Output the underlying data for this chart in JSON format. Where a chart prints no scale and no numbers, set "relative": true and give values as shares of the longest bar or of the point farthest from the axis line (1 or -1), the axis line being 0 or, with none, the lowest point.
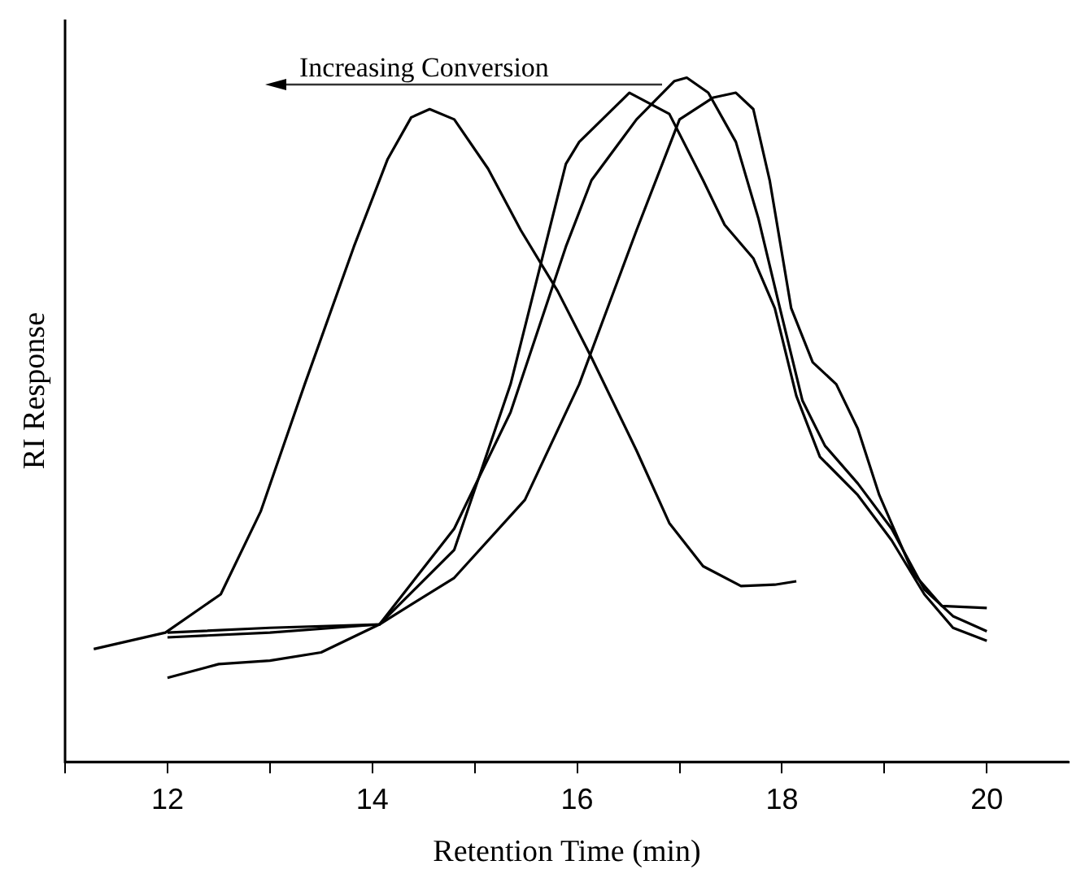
{
  "chart_data": {
    "type": "line",
    "xlabel": "Retention Time (min)",
    "ylabel": "RI Response",
    "relative": true,
    "tick_labels": "x",
    "legend": false,
    "grid": false,
    "marker": "none",
    "line_style": "solid",
    "xlim": [
      11,
      20.8
    ],
    "xticks": [
      {
        "value": 11,
        "label": null
      },
      12,
      {
        "value": 13,
        "label": null
      },
      14,
      {
        "value": 15,
        "label": null
      },
      16,
      {
        "value": 17,
        "label": null
      },
      18,
      {
        "value": 19,
        "label": null
      },
      20
    ],
    "annotations": [
      "Increasing Conversion"
    ],
    "series": [
      {
        "color": "#000000",
        "x": [
          11.28,
          11.98,
          12.52,
          12.91,
          13.34,
          13.82,
          14.15,
          14.38,
          14.56,
          14.8,
          15.13,
          15.45,
          15.81,
          16.14,
          16.58,
          16.9,
          17.23,
          17.6,
          17.93,
          18.14
        ],
        "values": [
          0.165,
          0.189,
          0.245,
          0.366,
          0.552,
          0.753,
          0.881,
          0.942,
          0.954,
          0.939,
          0.867,
          0.777,
          0.688,
          0.591,
          0.455,
          0.349,
          0.286,
          0.257,
          0.259,
          0.264
        ]
      },
      {
        "color": "#000000",
        "x": [
          12,
          13,
          14.07,
          14.8,
          15.35,
          15.89,
          16.02,
          16.51,
          16.9,
          17.23,
          17.44,
          17.72,
          17.93,
          18.14,
          18.37,
          18.74,
          19.07,
          19.39,
          19.67,
          20
        ],
        "values": [
          0.189,
          0.196,
          0.201,
          0.31,
          0.552,
          0.874,
          0.906,
          0.978,
          0.947,
          0.85,
          0.785,
          0.736,
          0.663,
          0.535,
          0.446,
          0.39,
          0.324,
          0.245,
          0.196,
          0.177
        ]
      },
      {
        "color": "#000000",
        "x": [
          12,
          13,
          14.07,
          14.8,
          15.35,
          15.89,
          16.14,
          16.58,
          16.95,
          17.07,
          17.28,
          17.55,
          17.77,
          17.98,
          18.2,
          18.42,
          18.74,
          19.07,
          19.39,
          19.67,
          20
        ],
        "values": [
          0.182,
          0.189,
          0.201,
          0.341,
          0.511,
          0.753,
          0.85,
          0.939,
          0.995,
          1.0,
          0.978,
          0.906,
          0.794,
          0.663,
          0.528,
          0.462,
          0.407,
          0.341,
          0.252,
          0.213,
          0.191
        ]
      },
      {
        "color": "#000000",
        "x": [
          12,
          12.5,
          13,
          13.5,
          14.07,
          14.8,
          15.49,
          16.02,
          16.58,
          17.0,
          17.33,
          17.55,
          17.72,
          17.88,
          18.09,
          18.3,
          18.53,
          18.74,
          18.95,
          19.28,
          19.56,
          20
        ],
        "values": [
          0.123,
          0.143,
          0.148,
          0.16,
          0.201,
          0.269,
          0.383,
          0.552,
          0.777,
          0.939,
          0.971,
          0.978,
          0.954,
          0.85,
          0.663,
          0.584,
          0.552,
          0.487,
          0.39,
          0.276,
          0.228,
          0.225
        ]
      }
    ]
  }
}
